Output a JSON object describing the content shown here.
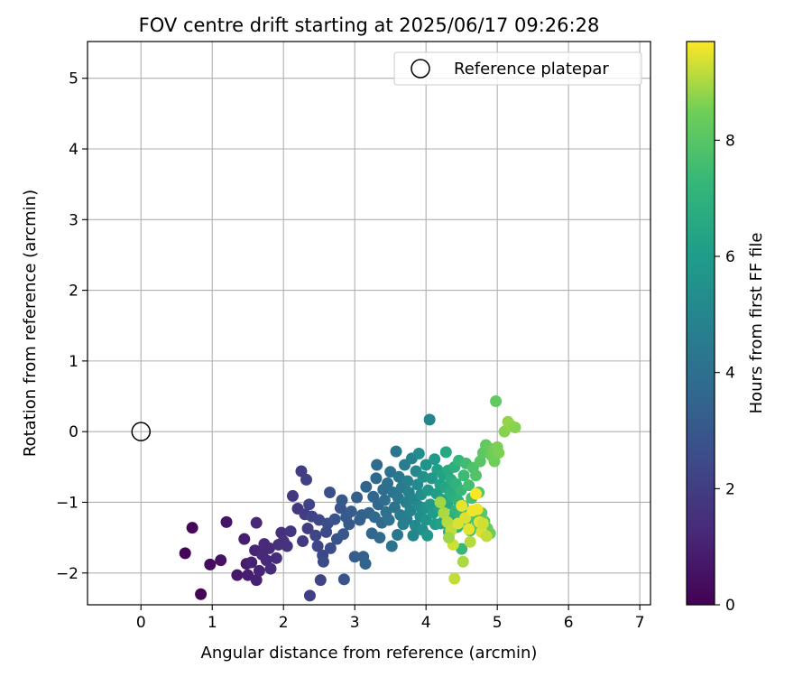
{
  "chart_data": {
    "type": "scatter",
    "title": "FOV centre drift starting at 2025/06/17 09:26:28",
    "xlabel": "Angular distance from reference (arcmin)",
    "ylabel": "Rotation from reference (arcmin)",
    "xlim": [
      -0.75,
      7.15
    ],
    "ylim": [
      -2.45,
      5.52
    ],
    "xticks": [
      0,
      1,
      2,
      3,
      4,
      5,
      6,
      7
    ],
    "yticks": [
      -2,
      -1,
      0,
      1,
      2,
      3,
      4,
      5
    ],
    "grid": true,
    "legend": {
      "position": "upper right",
      "entries": [
        "Reference platepar"
      ]
    },
    "colorbar": {
      "label": "Hours from first FF file",
      "range": [
        0,
        9.7
      ],
      "ticks": [
        0,
        2,
        4,
        6,
        8
      ],
      "colormap": "viridis"
    },
    "reference_point": {
      "x": 0,
      "y": 0,
      "label": "Reference platepar"
    },
    "points": [
      [
        0.62,
        -1.72,
        0.1
      ],
      [
        0.72,
        -1.36,
        0.15
      ],
      [
        0.84,
        -2.3,
        0.05
      ],
      [
        0.97,
        -1.88,
        0.3
      ],
      [
        1.12,
        -1.82,
        0.5
      ],
      [
        1.2,
        -1.28,
        0.6
      ],
      [
        1.35,
        -2.03,
        0.7
      ],
      [
        1.45,
        -1.52,
        0.9
      ],
      [
        1.48,
        -1.87,
        0.8
      ],
      [
        1.5,
        -2.03,
        0.9
      ],
      [
        1.55,
        -1.85,
        1.0
      ],
      [
        1.6,
        -1.68,
        1.1
      ],
      [
        1.62,
        -2.1,
        1.0
      ],
      [
        1.62,
        -1.29,
        1.2
      ],
      [
        1.66,
        -1.97,
        1.1
      ],
      [
        1.7,
        -1.74,
        1.2
      ],
      [
        1.73,
        -1.59,
        1.3
      ],
      [
        1.76,
        -1.82,
        1.2
      ],
      [
        1.8,
        -1.65,
        1.3
      ],
      [
        1.82,
        -1.94,
        1.4
      ],
      [
        1.9,
        -1.79,
        1.4
      ],
      [
        1.93,
        -1.6,
        1.5
      ],
      [
        1.97,
        -1.43,
        1.5
      ],
      [
        2.0,
        -1.55,
        1.6
      ],
      [
        2.05,
        -1.62,
        1.6
      ],
      [
        2.1,
        -1.41,
        1.7
      ],
      [
        2.13,
        -0.91,
        1.8
      ],
      [
        2.2,
        -1.09,
        1.8
      ],
      [
        2.25,
        -0.56,
        2.0
      ],
      [
        2.27,
        -1.55,
        1.9
      ],
      [
        2.3,
        -1.17,
        2.0
      ],
      [
        2.32,
        -0.68,
        2.1
      ],
      [
        2.34,
        -1.37,
        2.0
      ],
      [
        2.36,
        -1.03,
        2.2
      ],
      [
        2.37,
        -2.32,
        2.1
      ],
      [
        2.4,
        -1.2,
        2.2
      ],
      [
        2.45,
        -1.47,
        2.3
      ],
      [
        2.48,
        -1.62,
        2.3
      ],
      [
        2.5,
        -1.25,
        2.4
      ],
      [
        2.52,
        -2.1,
        2.2
      ],
      [
        2.55,
        -1.75,
        2.4
      ],
      [
        2.56,
        -1.84,
        2.5
      ],
      [
        2.6,
        -1.42,
        2.5
      ],
      [
        2.62,
        -1.3,
        2.6
      ],
      [
        2.65,
        -0.86,
        2.7
      ],
      [
        2.66,
        -1.65,
        2.6
      ],
      [
        2.72,
        -1.24,
        2.8
      ],
      [
        2.75,
        -1.52,
        2.8
      ],
      [
        2.8,
        -1.08,
        2.9
      ],
      [
        2.82,
        -0.97,
        3.0
      ],
      [
        2.84,
        -1.45,
        3.0
      ],
      [
        2.85,
        -2.09,
        2.9
      ],
      [
        2.88,
        -1.21,
        3.1
      ],
      [
        2.92,
        -1.31,
        3.1
      ],
      [
        2.95,
        -1.13,
        3.2
      ],
      [
        3.0,
        -1.77,
        3.2
      ],
      [
        3.03,
        -0.93,
        3.3
      ],
      [
        3.07,
        -1.25,
        3.3
      ],
      [
        3.1,
        -1.18,
        3.4
      ],
      [
        3.12,
        -1.77,
        3.4
      ],
      [
        3.15,
        -1.87,
        3.5
      ],
      [
        3.16,
        -0.78,
        3.5
      ],
      [
        3.2,
        -1.15,
        3.5
      ],
      [
        3.24,
        -1.44,
        3.6
      ],
      [
        3.26,
        -0.92,
        3.6
      ],
      [
        3.28,
        -1.21,
        3.7
      ],
      [
        3.3,
        -0.66,
        3.7
      ],
      [
        3.31,
        -0.47,
        3.8
      ],
      [
        3.33,
        -1.03,
        3.7
      ],
      [
        3.35,
        -1.5,
        3.8
      ],
      [
        3.38,
        -1.29,
        3.8
      ],
      [
        3.4,
        -0.82,
        3.9
      ],
      [
        3.42,
        -0.97,
        3.9
      ],
      [
        3.44,
        -1.14,
        4.0
      ],
      [
        3.46,
        -0.73,
        4.0
      ],
      [
        3.48,
        -1.25,
        4.1
      ],
      [
        3.5,
        -0.57,
        4.1
      ],
      [
        3.52,
        -1.62,
        4.1
      ],
      [
        3.54,
        -0.86,
        4.2
      ],
      [
        3.56,
        -1.07,
        4.2
      ],
      [
        3.58,
        -0.28,
        4.3
      ],
      [
        3.6,
        -1.46,
        4.3
      ],
      [
        3.61,
        -0.94,
        4.4
      ],
      [
        3.62,
        -0.64,
        4.4
      ],
      [
        3.64,
        -1.18,
        4.5
      ],
      [
        3.66,
        -0.79,
        4.5
      ],
      [
        3.68,
        -1.31,
        4.6
      ],
      [
        3.7,
        -0.47,
        4.6
      ],
      [
        3.72,
        -1.0,
        4.7
      ],
      [
        3.73,
        -1.24,
        4.7
      ],
      [
        3.74,
        -0.7,
        4.8
      ],
      [
        3.76,
        -0.86,
        4.8
      ],
      [
        3.78,
        -1.12,
        4.9
      ],
      [
        3.8,
        -0.38,
        4.9
      ],
      [
        3.82,
        -1.47,
        5.0
      ],
      [
        3.83,
        -0.96,
        5.0
      ],
      [
        3.85,
        -1.33,
        5.1
      ],
      [
        3.86,
        -0.56,
        5.1
      ],
      [
        3.88,
        -0.75,
        5.2
      ],
      [
        3.89,
        -1.05,
        5.2
      ],
      [
        3.9,
        -0.31,
        5.3
      ],
      [
        3.92,
        -1.2,
        5.3
      ],
      [
        3.93,
        -0.89,
        5.4
      ],
      [
        3.95,
        -1.39,
        5.4
      ],
      [
        3.96,
        -0.64,
        5.5
      ],
      [
        3.98,
        -1.08,
        5.5
      ],
      [
        4.0,
        -0.47,
        5.6
      ],
      [
        4.0,
        -1.25,
        5.6
      ],
      [
        4.02,
        -1.47,
        5.7
      ],
      [
        4.03,
        -0.83,
        5.7
      ],
      [
        4.05,
        0.17,
        5.0
      ],
      [
        4.06,
        -1.03,
        5.8
      ],
      [
        4.08,
        -0.66,
        5.8
      ],
      [
        4.1,
        -1.15,
        5.9
      ],
      [
        4.12,
        -0.39,
        5.9
      ],
      [
        4.13,
        -1.31,
        6.0
      ],
      [
        4.15,
        -0.88,
        6.0
      ],
      [
        4.16,
        -0.54,
        6.1
      ],
      [
        4.18,
        -1.1,
        6.1
      ],
      [
        4.2,
        -0.75,
        6.2
      ],
      [
        4.21,
        -1.3,
        6.2
      ],
      [
        4.22,
        -0.96,
        6.3
      ],
      [
        4.24,
        -0.61,
        6.3
      ],
      [
        4.26,
        -1.18,
        6.4
      ],
      [
        4.27,
        -0.79,
        6.4
      ],
      [
        4.28,
        -0.29,
        6.5
      ],
      [
        4.3,
        -1.02,
        6.5
      ],
      [
        4.31,
        -0.55,
        6.6
      ],
      [
        4.32,
        -1.42,
        6.6
      ],
      [
        4.34,
        -0.86,
        6.7
      ],
      [
        4.35,
        -0.68,
        6.7
      ],
      [
        4.36,
        -1.25,
        6.8
      ],
      [
        4.38,
        -0.93,
        6.8
      ],
      [
        4.4,
        -0.5,
        6.9
      ],
      [
        4.41,
        -1.12,
        7.0
      ],
      [
        4.42,
        -0.74,
        7.0
      ],
      [
        4.44,
        -1.35,
        7.1
      ],
      [
        4.45,
        -0.98,
        7.1
      ],
      [
        4.46,
        -0.41,
        7.2
      ],
      [
        4.48,
        -1.2,
        7.2
      ],
      [
        4.49,
        -0.83,
        7.3
      ],
      [
        4.5,
        -1.66,
        7.3
      ],
      [
        4.52,
        -1.05,
        7.4
      ],
      [
        4.53,
        -0.62,
        7.4
      ],
      [
        4.55,
        -1.29,
        7.5
      ],
      [
        4.56,
        -0.45,
        7.5
      ],
      [
        4.58,
        -1.14,
        7.6
      ],
      [
        4.6,
        -0.76,
        7.6
      ],
      [
        4.62,
        -1.4,
        7.7
      ],
      [
        4.64,
        -0.94,
        7.7
      ],
      [
        4.66,
        -0.51,
        7.8
      ],
      [
        4.68,
        -1.22,
        7.8
      ],
      [
        4.7,
        -0.62,
        7.9
      ],
      [
        4.72,
        -1.32,
        7.9
      ],
      [
        4.74,
        -0.86,
        8.0
      ],
      [
        4.76,
        -0.42,
        8.0
      ],
      [
        4.78,
        -1.15,
        8.1
      ],
      [
        4.8,
        -0.3,
        8.1
      ],
      [
        4.82,
        -1.27,
        8.2
      ],
      [
        4.84,
        -0.19,
        8.2
      ],
      [
        4.86,
        -1.37,
        8.3
      ],
      [
        4.88,
        -0.23,
        8.3
      ],
      [
        4.9,
        -1.44,
        8.4
      ],
      [
        4.92,
        -0.34,
        8.4
      ],
      [
        4.94,
        -0.27,
        8.5
      ],
      [
        4.96,
        -0.42,
        8.5
      ],
      [
        4.98,
        0.43,
        8.2
      ],
      [
        5.0,
        -0.22,
        8.6
      ],
      [
        5.02,
        -0.3,
        8.6
      ],
      [
        5.1,
        0.0,
        8.7
      ],
      [
        5.15,
        0.14,
        8.8
      ],
      [
        5.2,
        0.08,
        8.8
      ],
      [
        5.25,
        0.06,
        8.7
      ],
      [
        4.2,
        -1.0,
        8.9
      ],
      [
        4.25,
        -1.15,
        9.0
      ],
      [
        4.3,
        -1.28,
        9.1
      ],
      [
        4.35,
        -1.4,
        9.2
      ],
      [
        4.38,
        -1.6,
        9.3
      ],
      [
        4.4,
        -2.08,
        9.2
      ],
      [
        4.45,
        -1.3,
        9.4
      ],
      [
        4.5,
        -1.05,
        9.5
      ],
      [
        4.55,
        -1.22,
        9.4
      ],
      [
        4.6,
        -1.38,
        9.5
      ],
      [
        4.65,
        -1.12,
        9.6
      ],
      [
        4.7,
        -0.88,
        9.7
      ],
      [
        4.72,
        -1.1,
        9.6
      ],
      [
        4.75,
        -1.28,
        9.5
      ],
      [
        4.78,
        -1.42,
        9.4
      ],
      [
        4.8,
        -1.3,
        9.3
      ],
      [
        4.85,
        -1.48,
        9.2
      ],
      [
        4.52,
        -1.84,
        9.0
      ],
      [
        4.32,
        -1.5,
        8.9
      ],
      [
        4.62,
        -1.56,
        9.1
      ]
    ]
  }
}
